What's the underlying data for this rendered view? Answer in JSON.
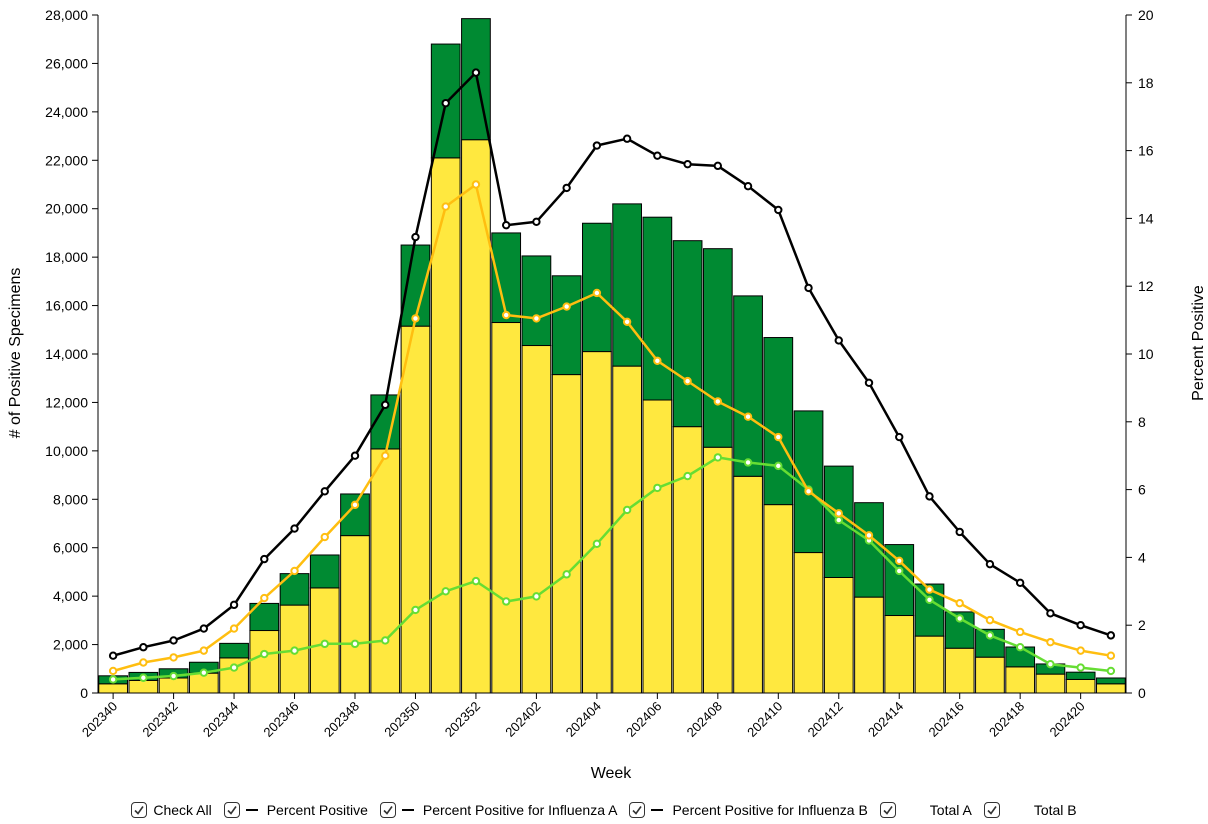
{
  "chart_data": {
    "type": "bar",
    "stacked": true,
    "xlabel": "Week",
    "ylabel": "# of Positive Specimens",
    "y2label": "Percent Positive",
    "ylim": [
      0,
      28000
    ],
    "y2lim": [
      0,
      20
    ],
    "yticks": [
      0,
      2000,
      4000,
      6000,
      8000,
      10000,
      12000,
      14000,
      16000,
      18000,
      20000,
      22000,
      24000,
      26000,
      28000
    ],
    "y2ticks": [
      0,
      2,
      4,
      6,
      8,
      10,
      12,
      14,
      16,
      18,
      20
    ],
    "categories": [
      "202340",
      "202341",
      "202342",
      "202343",
      "202344",
      "202345",
      "202346",
      "202347",
      "202348",
      "202349",
      "202350",
      "202351",
      "202352",
      "202401",
      "202402",
      "202403",
      "202404",
      "202405",
      "202406",
      "202407",
      "202408",
      "202409",
      "202410",
      "202411",
      "202412",
      "202413",
      "202414",
      "202415",
      "202416",
      "202417",
      "202418",
      "202419",
      "202420",
      "202421"
    ],
    "xtick_labels": [
      "202340",
      "202342",
      "202344",
      "202346",
      "202348",
      "202350",
      "202352",
      "202402",
      "202404",
      "202406",
      "202408",
      "202410",
      "202412",
      "202414",
      "202416",
      "202418",
      "202420"
    ],
    "bar_series": [
      {
        "name": "Total A",
        "color": "#ffe83f",
        "values": [
          380,
          520,
          620,
          820,
          1450,
          2580,
          3630,
          4340,
          6500,
          10080,
          15150,
          22100,
          22850,
          15300,
          14350,
          13150,
          14100,
          13500,
          12100,
          11000,
          10150,
          8950,
          7780,
          5800,
          4770,
          3960,
          3200,
          2350,
          1850,
          1480,
          1080,
          780,
          560,
          380
        ]
      },
      {
        "name": "Total B",
        "color": "#008a32",
        "values": [
          330,
          330,
          380,
          450,
          600,
          1120,
          1300,
          1360,
          1720,
          2230,
          3350,
          4700,
          5000,
          3700,
          3700,
          4080,
          5300,
          6700,
          7550,
          7680,
          8200,
          7450,
          6900,
          5850,
          4600,
          3900,
          2930,
          2150,
          1500,
          1150,
          820,
          420,
          300,
          240
        ]
      }
    ],
    "line_series": [
      {
        "name": "Percent Positive",
        "color": "#000000",
        "values": [
          1.1,
          1.35,
          1.55,
          1.9,
          2.6,
          3.95,
          4.85,
          5.95,
          7.0,
          8.5,
          13.45,
          17.4,
          18.3,
          13.8,
          13.9,
          14.9,
          16.15,
          16.35,
          15.85,
          15.6,
          15.55,
          14.95,
          14.25,
          11.95,
          10.4,
          9.15,
          7.55,
          5.8,
          4.75,
          3.8,
          3.25,
          2.35,
          2.0,
          1.7
        ]
      },
      {
        "name": "Percent Positive for Influenza A",
        "color": "#ffbe10",
        "values": [
          0.65,
          0.9,
          1.05,
          1.25,
          1.9,
          2.8,
          3.6,
          4.6,
          5.55,
          7.0,
          11.05,
          14.35,
          15.0,
          11.15,
          11.05,
          11.4,
          11.8,
          10.95,
          9.8,
          9.2,
          8.6,
          8.15,
          7.55,
          5.95,
          5.3,
          4.65,
          3.9,
          3.05,
          2.65,
          2.15,
          1.8,
          1.5,
          1.25,
          1.1
        ]
      },
      {
        "name": "Percent Positive for Influenza B",
        "color": "#66dd33",
        "values": [
          0.4,
          0.45,
          0.5,
          0.6,
          0.75,
          1.15,
          1.25,
          1.45,
          1.45,
          1.55,
          2.45,
          3.0,
          3.3,
          2.7,
          2.85,
          3.5,
          4.4,
          5.4,
          6.05,
          6.4,
          6.95,
          6.8,
          6.7,
          6.0,
          5.1,
          4.5,
          3.6,
          2.75,
          2.2,
          1.7,
          1.35,
          0.85,
          0.75,
          0.65
        ]
      }
    ]
  },
  "legend": {
    "check_all": "Check All",
    "percent_positive": "Percent Positive",
    "percent_positive_a": "Percent Positive for Influenza A",
    "percent_positive_b": "Percent Positive for Influenza B",
    "total_a": "Total A",
    "total_b": "Total B"
  }
}
